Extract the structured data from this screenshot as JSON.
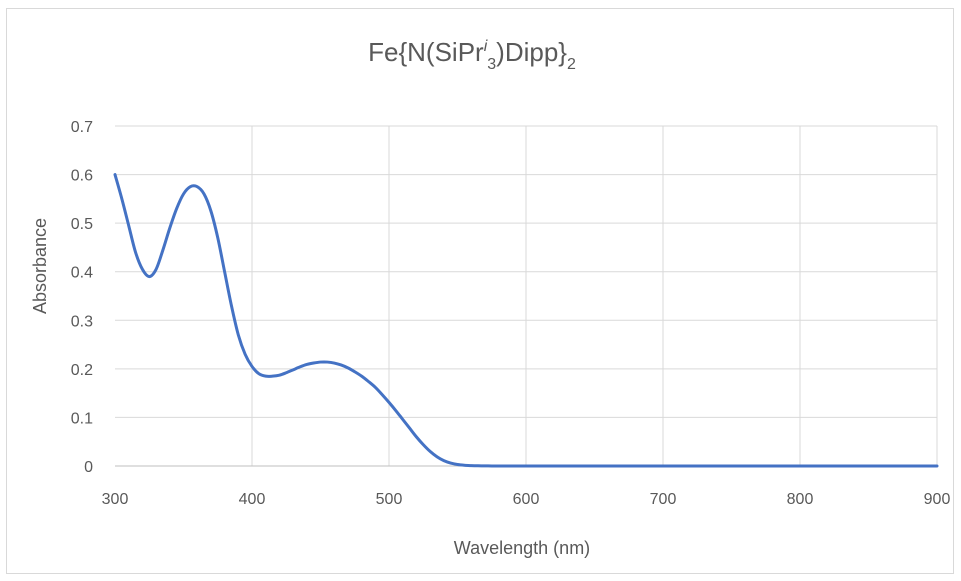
{
  "chart_data": {
    "type": "line",
    "title": {
      "main": "Fe{N(SiPr",
      "sup": "i",
      "sub1": "3",
      "mid": ")Dipp}",
      "sub2": "2"
    },
    "xlabel": "Wavelength (nm)",
    "ylabel": "Absorbance",
    "xlim": [
      300,
      900
    ],
    "ylim": [
      0,
      0.7
    ],
    "x_ticks": [
      "300",
      "400",
      "500",
      "600",
      "700",
      "800",
      "900"
    ],
    "y_ticks": [
      "0",
      "0.1",
      "0.2",
      "0.3",
      "0.4",
      "0.5",
      "0.6",
      "0.7"
    ],
    "grid": true,
    "legend": "none",
    "series": [
      {
        "color": "#4472c4",
        "x": [
          300,
          305,
          310,
          315,
          320,
          325,
          330,
          335,
          340,
          345,
          350,
          355,
          360,
          365,
          370,
          375,
          380,
          385,
          390,
          395,
          400,
          405,
          410,
          415,
          420,
          425,
          430,
          435,
          440,
          445,
          450,
          455,
          460,
          465,
          470,
          475,
          480,
          485,
          490,
          495,
          500,
          505,
          510,
          515,
          520,
          525,
          530,
          535,
          540,
          545,
          550,
          555,
          560,
          565,
          570,
          575,
          580,
          590,
          600,
          620,
          650,
          700,
          750,
          800,
          850,
          900
        ],
        "y": [
          0.6,
          0.55,
          0.495,
          0.44,
          0.405,
          0.39,
          0.405,
          0.445,
          0.49,
          0.53,
          0.56,
          0.575,
          0.575,
          0.56,
          0.525,
          0.47,
          0.4,
          0.33,
          0.27,
          0.23,
          0.205,
          0.19,
          0.185,
          0.185,
          0.187,
          0.192,
          0.198,
          0.204,
          0.209,
          0.212,
          0.214,
          0.214,
          0.212,
          0.208,
          0.202,
          0.194,
          0.185,
          0.174,
          0.162,
          0.147,
          0.131,
          0.114,
          0.096,
          0.078,
          0.06,
          0.044,
          0.03,
          0.019,
          0.011,
          0.006,
          0.003,
          0.0015,
          0.0008,
          0.0004,
          0.0002,
          0.0001,
          0.0,
          0.0,
          0.0,
          0.0,
          0.0,
          0.0,
          0.0,
          0.0,
          0.0,
          0.0
        ]
      }
    ]
  }
}
